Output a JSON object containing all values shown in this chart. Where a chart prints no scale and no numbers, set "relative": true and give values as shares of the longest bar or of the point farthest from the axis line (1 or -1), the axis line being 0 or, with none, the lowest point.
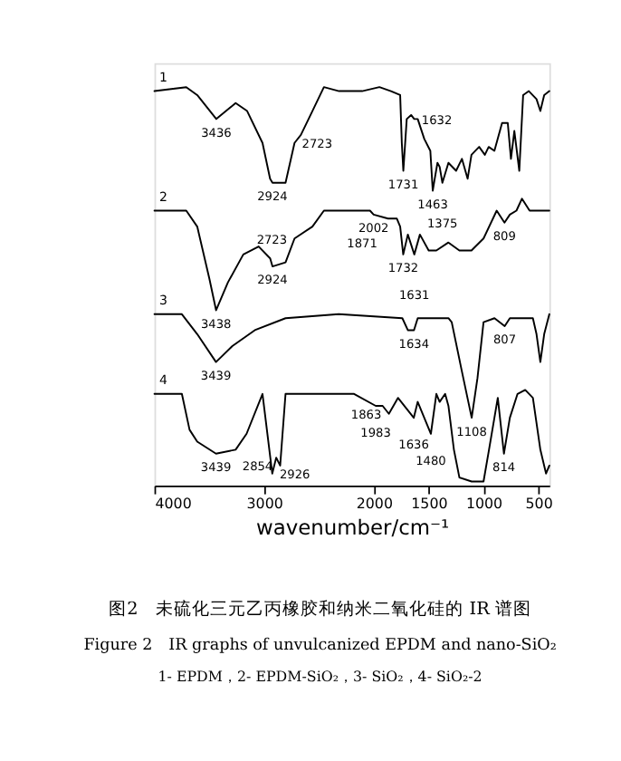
{
  "chart_data": {
    "type": "line",
    "relative": true,
    "title": "图2　未硫化三元乙丙橡胶和纳米二氧化硅的 IR 谱图",
    "subtitle": "Figure 2　IR graphs of unvulcanized EPDM and nano-SiO₂",
    "xlabel": "wavenumber/cm⁻¹",
    "xlim": [
      4000,
      400
    ],
    "xticks": [
      4000,
      3000,
      2000,
      1500,
      1000,
      500
    ],
    "grid": false,
    "legend": false,
    "line_style": "solid",
    "marker": "none",
    "series": [
      {
        "name": "1",
        "color": "#000000",
        "x": [
          4000,
          3710,
          3610,
          3436,
          3260,
          3155,
          3015,
          2946,
          2924,
          2805,
          2723,
          2665,
          2560,
          2455,
          2317,
          2107,
          1949,
          1844,
          1760,
          1745,
          1731,
          1700,
          1660,
          1632,
          1600,
          1540,
          1485,
          1463,
          1445,
          1420,
          1400,
          1375,
          1320,
          1250,
          1197,
          1145,
          1110,
          1040,
          988,
          953,
          901,
          831,
          779,
          750,
          719,
          674,
          639,
          587,
          517,
          482,
          447,
          400
        ],
        "values": [
          0.99,
          1.0,
          0.98,
          0.92,
          0.96,
          0.94,
          0.86,
          0.77,
          0.76,
          0.76,
          0.86,
          0.88,
          0.94,
          1.0,
          0.99,
          0.99,
          1.0,
          0.99,
          0.98,
          0.86,
          0.79,
          0.92,
          0.93,
          0.92,
          0.92,
          0.87,
          0.84,
          0.74,
          0.77,
          0.81,
          0.8,
          0.76,
          0.81,
          0.79,
          0.82,
          0.77,
          0.83,
          0.85,
          0.83,
          0.85,
          0.84,
          0.91,
          0.91,
          0.82,
          0.89,
          0.79,
          0.98,
          0.99,
          0.97,
          0.94,
          0.98,
          0.99
        ]
      },
      {
        "name": "2",
        "color": "#000000",
        "x": [
          4000,
          3710,
          3610,
          3500,
          3438,
          3330,
          3190,
          3050,
          2945,
          2924,
          2805,
          2723,
          2560,
          2455,
          2245,
          2035,
          2002,
          1871,
          1790,
          1760,
          1732,
          1690,
          1631,
          1580,
          1500,
          1430,
          1320,
          1220,
          1110,
          1000,
          880,
          809,
          760,
          700,
          650,
          580,
          400
        ],
        "values": [
          0.69,
          0.69,
          0.65,
          0.52,
          0.44,
          0.51,
          0.58,
          0.6,
          0.57,
          0.55,
          0.56,
          0.62,
          0.65,
          0.69,
          0.69,
          0.69,
          0.68,
          0.67,
          0.67,
          0.65,
          0.58,
          0.63,
          0.58,
          0.63,
          0.59,
          0.59,
          0.61,
          0.59,
          0.59,
          0.62,
          0.69,
          0.66,
          0.68,
          0.69,
          0.72,
          0.69,
          0.69
        ]
      },
      {
        "name": "3",
        "color": "#000000",
        "x": [
          4000,
          3750,
          3610,
          3439,
          3290,
          3085,
          2805,
          2320,
          1740,
          1690,
          1634,
          1600,
          1320,
          1290,
          1200,
          1108,
          1055,
          1000,
          900,
          807,
          760,
          550,
          517,
          482,
          447,
          400
        ],
        "values": [
          0.43,
          0.43,
          0.38,
          0.31,
          0.35,
          0.39,
          0.42,
          0.43,
          0.42,
          0.39,
          0.39,
          0.42,
          0.42,
          0.41,
          0.29,
          0.17,
          0.27,
          0.41,
          0.42,
          0.4,
          0.42,
          0.42,
          0.38,
          0.31,
          0.38,
          0.43
        ]
      },
      {
        "name": "4",
        "color": "#000000",
        "x": [
          4000,
          3750,
          3680,
          3610,
          3439,
          3260,
          3160,
          3015,
          2926,
          2890,
          2854,
          2805,
          2530,
          2180,
          1983,
          1920,
          1863,
          1780,
          1636,
          1600,
          1480,
          1430,
          1400,
          1350,
          1320,
          1270,
          1220,
          1108,
          1000,
          950,
          870,
          814,
          760,
          690,
          620,
          550,
          482,
          430,
          400
        ],
        "values": [
          0.23,
          0.23,
          0.14,
          0.11,
          0.08,
          0.09,
          0.13,
          0.23,
          0.03,
          0.07,
          0.05,
          0.23,
          0.23,
          0.23,
          0.2,
          0.2,
          0.18,
          0.22,
          0.17,
          0.21,
          0.13,
          0.23,
          0.21,
          0.23,
          0.2,
          0.09,
          0.02,
          0.01,
          0.01,
          0.09,
          0.22,
          0.08,
          0.17,
          0.23,
          0.24,
          0.22,
          0.09,
          0.03,
          0.05
        ]
      }
    ],
    "annotations": [
      {
        "text": "3436",
        "x": 3436,
        "y": 0.92
      },
      {
        "text": "2924",
        "x": 2924,
        "y": 0.76
      },
      {
        "text": "2723",
        "x": 2723,
        "y": 0.86
      },
      {
        "text": "1731",
        "x": 1731,
        "y": 0.79
      },
      {
        "text": "1632",
        "x": 1632,
        "y": 0.92
      },
      {
        "text": "1463",
        "x": 1463,
        "y": 0.74
      },
      {
        "text": "1375",
        "x": 1375,
        "y": 0.76
      },
      {
        "text": "3438",
        "x": 3438,
        "y": 0.44
      },
      {
        "text": "2924",
        "x": 2924,
        "y": 0.55
      },
      {
        "text": "2723",
        "x": 2723,
        "y": 0.62
      },
      {
        "text": "2002",
        "x": 2002,
        "y": 0.68
      },
      {
        "text": "1871",
        "x": 1871,
        "y": 0.67
      },
      {
        "text": "1732",
        "x": 1732,
        "y": 0.58
      },
      {
        "text": "1631",
        "x": 1631,
        "y": 0.58
      },
      {
        "text": "809",
        "x": 809,
        "y": 0.66
      },
      {
        "text": "3439",
        "x": 3439,
        "y": 0.31
      },
      {
        "text": "1634",
        "x": 1634,
        "y": 0.39
      },
      {
        "text": "807",
        "x": 807,
        "y": 0.4
      },
      {
        "text": "3439",
        "x": 3439,
        "y": 0.08
      },
      {
        "text": "2926",
        "x": 2926,
        "y": 0.03
      },
      {
        "text": "2854",
        "x": 2854,
        "y": 0.05
      },
      {
        "text": "1983",
        "x": 1983,
        "y": 0.2
      },
      {
        "text": "1863",
        "x": 1863,
        "y": 0.18
      },
      {
        "text": "1636",
        "x": 1636,
        "y": 0.17
      },
      {
        "text": "1480",
        "x": 1480,
        "y": 0.13
      },
      {
        "text": "1108",
        "x": 1108,
        "y": 0.17
      },
      {
        "text": "814",
        "x": 814,
        "y": 0.08
      },
      "1- EPDM，2- EPDM-SiO₂，3- SiO₂，4- SiO₂-2"
    ]
  }
}
